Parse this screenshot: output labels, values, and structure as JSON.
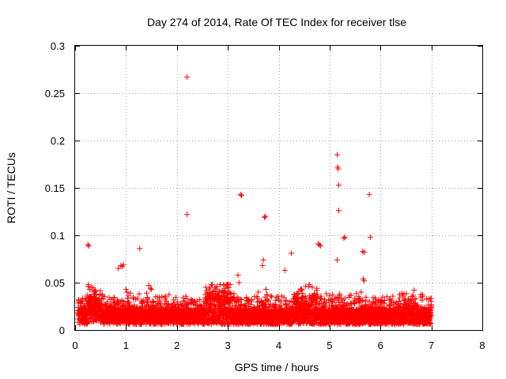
{
  "chart_data": {
    "type": "scatter",
    "title": "Day 274 of 2014, Rate Of TEC Index for receiver tlse",
    "xlabel": "GPS time / hours",
    "ylabel": "ROTI / TECUs",
    "xlim": [
      0,
      8
    ],
    "ylim": [
      0,
      0.3
    ],
    "x_ticks": [
      0,
      1,
      2,
      3,
      4,
      5,
      6,
      7,
      8
    ],
    "x_tick_labels": [
      "0",
      "1",
      "2",
      "3",
      "4",
      "5",
      "6",
      "7",
      "8"
    ],
    "y_ticks": [
      0,
      0.05,
      0.1,
      0.15,
      0.2,
      0.25,
      0.3
    ],
    "y_tick_labels": [
      "0",
      "0.05",
      "0.1",
      "0.15",
      "0.2",
      "0.25",
      "0.3"
    ],
    "grid": true,
    "marker": "+",
    "series_color": "#ff0000",
    "series": [
      {
        "name": "ROTI",
        "points": [
          [
            0.25,
            0.09
          ],
          [
            0.27,
            0.089
          ],
          [
            0.85,
            0.065
          ],
          [
            0.9,
            0.068
          ],
          [
            0.93,
            0.067
          ],
          [
            0.95,
            0.069
          ],
          [
            1.27,
            0.086
          ],
          [
            2.2,
            0.267
          ],
          [
            2.2,
            0.122
          ],
          [
            3.2,
            0.058
          ],
          [
            3.22,
            0.05
          ],
          [
            3.25,
            0.143
          ],
          [
            3.27,
            0.142
          ],
          [
            3.68,
            0.068
          ],
          [
            3.7,
            0.074
          ],
          [
            3.72,
            0.119
          ],
          [
            3.74,
            0.12
          ],
          [
            3.75,
            0.043
          ],
          [
            4.12,
            0.063
          ],
          [
            4.25,
            0.081
          ],
          [
            4.78,
            0.091
          ],
          [
            4.8,
            0.09
          ],
          [
            4.82,
            0.089
          ],
          [
            5.15,
            0.185
          ],
          [
            5.16,
            0.172
          ],
          [
            5.17,
            0.17
          ],
          [
            5.18,
            0.153
          ],
          [
            5.18,
            0.126
          ],
          [
            5.15,
            0.074
          ],
          [
            5.28,
            0.097
          ],
          [
            5.3,
            0.098
          ],
          [
            5.62,
            0.04
          ],
          [
            5.65,
            0.083
          ],
          [
            5.68,
            0.082
          ],
          [
            5.66,
            0.054
          ],
          [
            5.68,
            0.052
          ],
          [
            5.78,
            0.143
          ],
          [
            5.8,
            0.098
          ],
          [
            0.35,
            0.045
          ],
          [
            0.38,
            0.041
          ],
          [
            1.0,
            0.043
          ],
          [
            1.02,
            0.04
          ],
          [
            1.45,
            0.047
          ],
          [
            1.48,
            0.044
          ],
          [
            1.5,
            0.043
          ],
          [
            2.75,
            0.045
          ],
          [
            2.95,
            0.044
          ],
          [
            3.0,
            0.041
          ],
          [
            3.6,
            0.04
          ],
          [
            4.45,
            0.043
          ],
          [
            4.75,
            0.044
          ],
          [
            5.0,
            0.036
          ],
          [
            5.2,
            0.038
          ]
        ]
      }
    ],
    "band_note": "dense cluster of points between about 0.005 and 0.04 from 0.05 to 7.0 hours"
  }
}
